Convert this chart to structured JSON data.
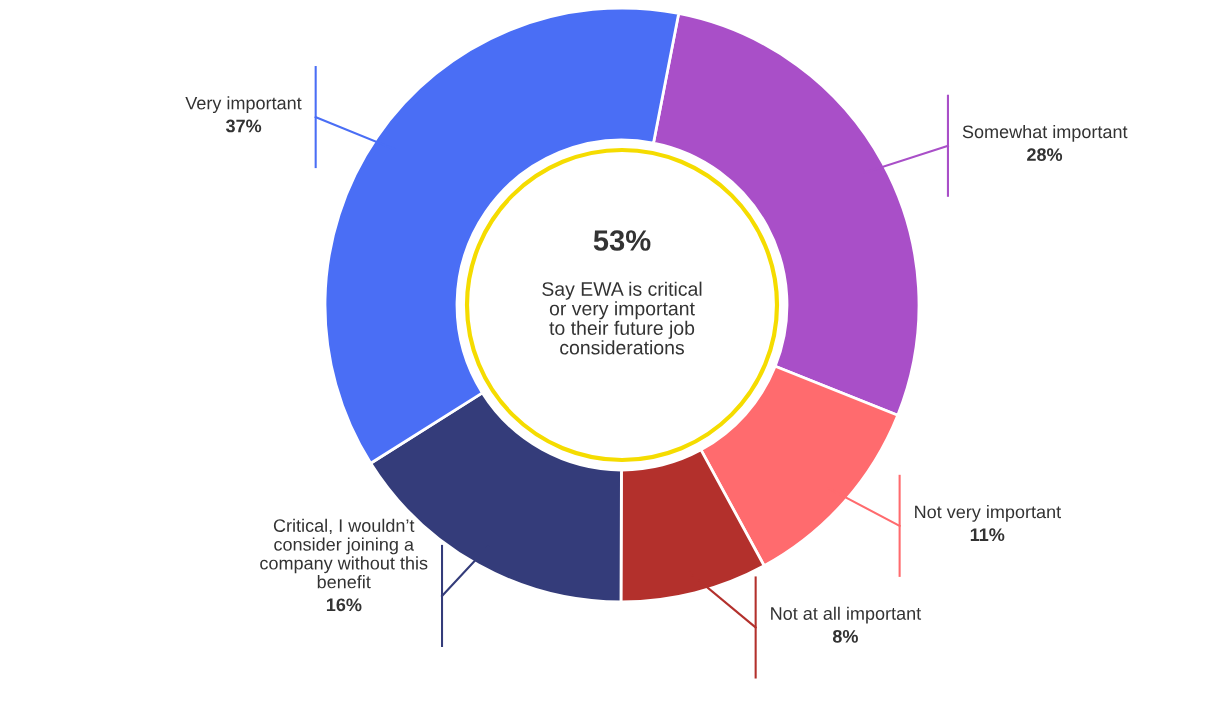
{
  "chart_data": {
    "type": "donut",
    "categories": [
      "Somewhat important",
      "Not very important",
      "Not at all important",
      "Critical, I wouldn’t\nconsider joining a\ncompany without this\nbenefit",
      "Very important"
    ],
    "values": [
      28,
      11,
      8,
      16,
      37
    ],
    "value_labels": [
      "28%",
      "11%",
      "8%",
      "16%",
      "37%"
    ],
    "colors": [
      "#a94fc8",
      "#ff6b6e",
      "#b3302c",
      "#343c7a",
      "#4a6ef5"
    ],
    "annotations": [
      "53%",
      "Say EWA is critical\nor very important\nto their future job\nconsiderations"
    ],
    "legend": false
  }
}
